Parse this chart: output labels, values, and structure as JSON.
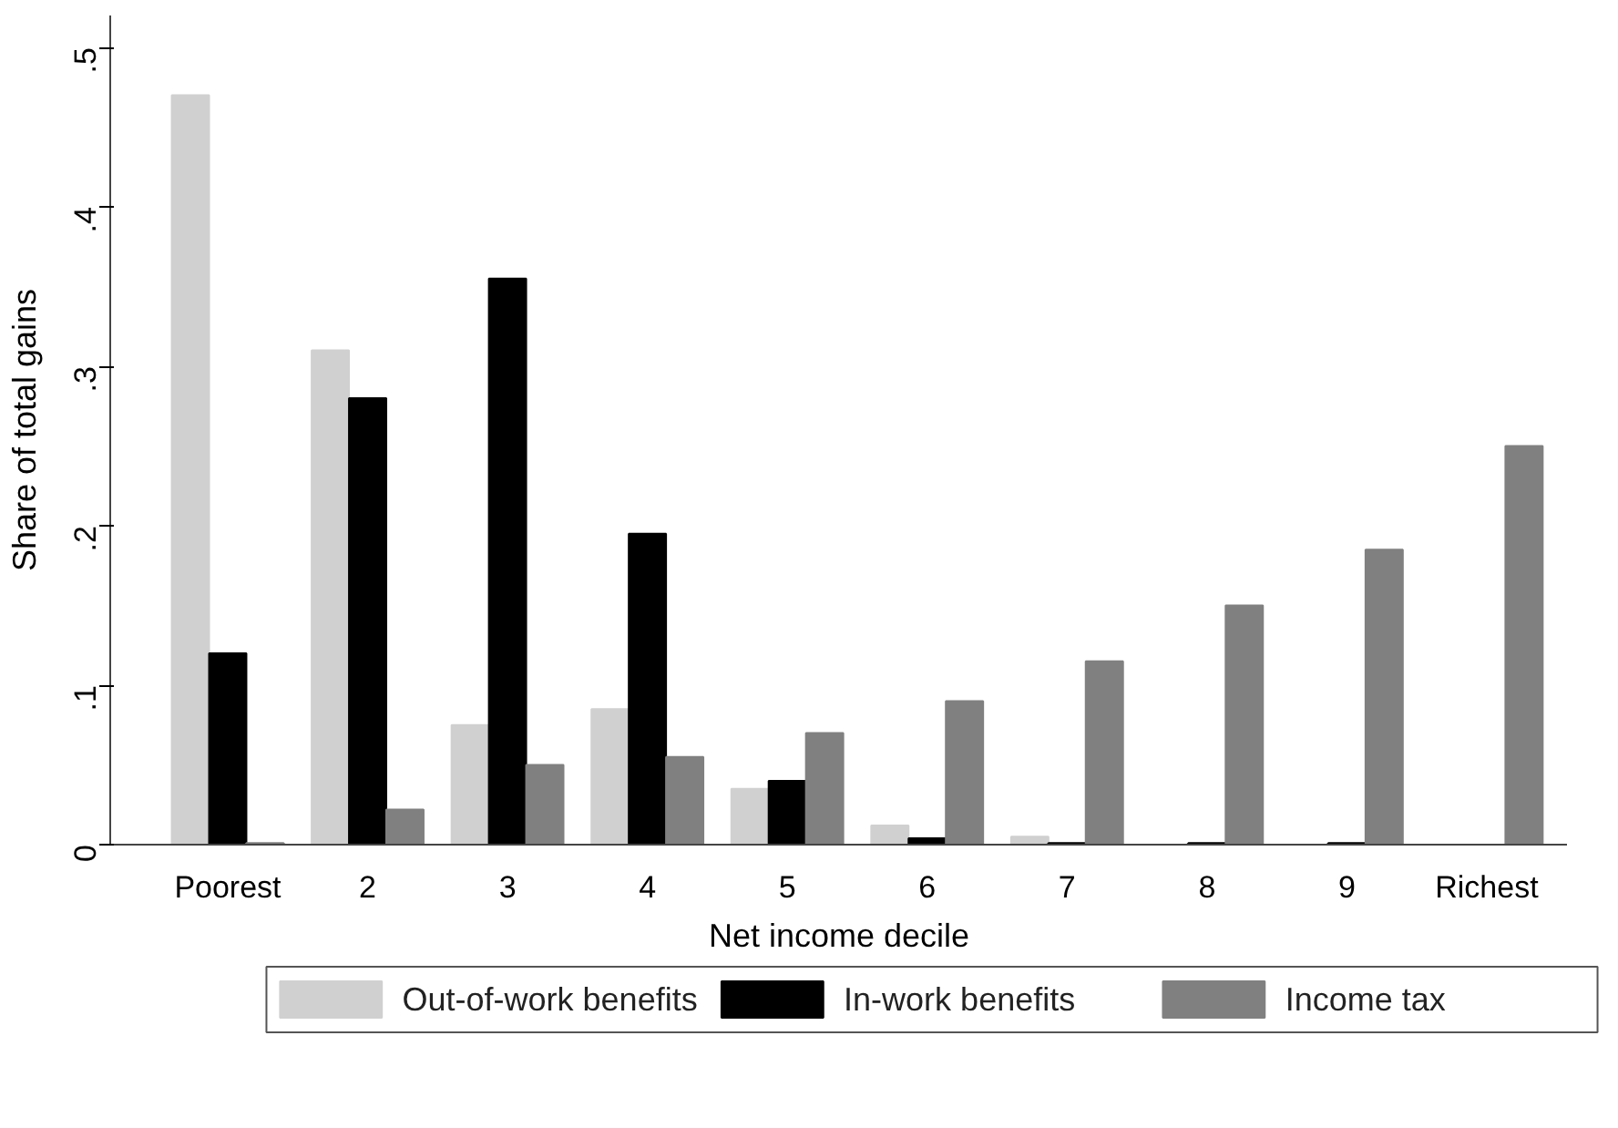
{
  "chart_data": {
    "type": "bar",
    "xlabel": "Net income decile",
    "ylabel": "Share of total gains",
    "categories": [
      "Poorest",
      "2",
      "3",
      "4",
      "5",
      "6",
      "7",
      "8",
      "9",
      "Richest"
    ],
    "series": [
      {
        "name": "Out-of-work benefits",
        "color": "#d0d0d0",
        "values": [
          0.47,
          0.31,
          0.075,
          0.085,
          0.035,
          0.012,
          0.005,
          0,
          0,
          0
        ]
      },
      {
        "name": "In-work benefits",
        "color": "#000000",
        "values": [
          0.12,
          0.28,
          0.355,
          0.195,
          0.04,
          0.004,
          0.001,
          0.001,
          0.001,
          0
        ]
      },
      {
        "name": "Income tax",
        "color": "#808080",
        "values": [
          0.001,
          0.022,
          0.05,
          0.055,
          0.07,
          0.09,
          0.115,
          0.15,
          0.185,
          0.25
        ]
      }
    ],
    "ylim": [
      0,
      0.52
    ],
    "yticks": [
      {
        "value": 0,
        "label": "0"
      },
      {
        "value": 0.1,
        "label": ".1"
      },
      {
        "value": 0.2,
        "label": ".2"
      },
      {
        "value": 0.3,
        "label": ".3"
      },
      {
        "value": 0.4,
        "label": ".4"
      },
      {
        "value": 0.5,
        "label": ".5"
      }
    ],
    "grid": false,
    "legend": "bottom"
  }
}
